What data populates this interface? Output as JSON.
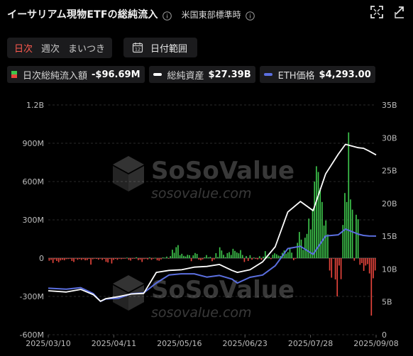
{
  "header": {
    "title": "イーサリアム現物ETFの総純流入",
    "timezone": "米国東部標準時"
  },
  "controls": {
    "periods": [
      "日次",
      "週次",
      "まいつき"
    ],
    "active_period": "日次",
    "date_range_label": "日付範囲",
    "calendar_day": "12"
  },
  "legend": [
    {
      "name": "日次総純流入額",
      "value": "-$96.69M",
      "color": "#3ec64c"
    },
    {
      "name": "総純資産",
      "value": "$27.39B",
      "color": "#ffffff"
    },
    {
      "name": "ETH価格",
      "value": "$4,293.00",
      "color": "#5b6fe0"
    }
  ],
  "watermark": {
    "brand": "SoSoValue",
    "site": "sosovalue.com"
  },
  "colors": {
    "positive": "#3ec64c",
    "negative": "#e8453c",
    "assets_line": "#ffffff",
    "price_line": "#5b6fe0",
    "background": "#000000"
  },
  "chart_data": {
    "type": "bar",
    "x_ticks": [
      "2025/03/10",
      "2025/04/11",
      "2025/05/16",
      "2025/06/23",
      "2025/07/28",
      "2025/09/08"
    ],
    "x_range": [
      "2025/03/10",
      "2025/09/08"
    ],
    "left_axis": {
      "ticks": [
        "1.2B",
        "900M",
        "600M",
        "300M",
        "0",
        "-300M",
        "-600M"
      ],
      "range": [
        -600,
        1200
      ],
      "unit": "M USD"
    },
    "right_axis": {
      "ticks": [
        "35B",
        "30B",
        "25B",
        "20B",
        "15B",
        "10B",
        "5B",
        "0"
      ],
      "range": [
        0,
        35
      ],
      "unit": "B USD"
    },
    "grid": true,
    "series": [
      {
        "name": "日次総純流入額",
        "kind": "bar",
        "unit": "M USD",
        "values": [
          -20,
          -14,
          -38,
          -10,
          -22,
          -32,
          -18,
          -13,
          -17,
          -8,
          -7,
          -5,
          -22,
          -30,
          -3,
          -13,
          -7,
          -14,
          -8,
          -17,
          -16,
          -6,
          -51,
          -9,
          -4,
          -6,
          -12,
          -3,
          -14,
          -6,
          -29,
          -34,
          -7,
          -42,
          -14,
          -6,
          -13,
          -3,
          -8,
          -5,
          -2,
          4,
          -14,
          -19,
          -5,
          -3,
          7,
          -16,
          -12,
          -30,
          -8,
          -5,
          -11,
          6,
          -13,
          -1,
          2,
          -17,
          -20,
          -10,
          6,
          3,
          12,
          -4,
          16,
          66,
          42,
          86,
          102,
          23,
          34,
          18,
          13,
          26,
          23,
          -24,
          22,
          40,
          33,
          -12,
          -17,
          -10,
          7,
          24,
          6,
          10,
          -24,
          -11,
          39,
          9,
          85,
          60,
          26,
          8,
          39,
          47,
          25,
          73,
          57,
          45,
          38,
          63,
          25,
          -30,
          16,
          -22,
          23,
          -12,
          5,
          -6,
          -10,
          15,
          -14,
          12,
          55,
          21,
          12,
          -8,
          26,
          38,
          30,
          20,
          17,
          42,
          60,
          36,
          47,
          73,
          43,
          -16,
          -4,
          120,
          205,
          145,
          65,
          160,
          190,
          310,
          225,
          385,
          600,
          720,
          675,
          548,
          440,
          255,
          295,
          186,
          -97,
          -153,
          -2,
          -167,
          -300,
          -58,
          -165,
          260,
          510,
          440,
          985,
          460,
          380,
          -20,
          340,
          305,
          -52,
          -39,
          -100,
          -58,
          -47,
          -120,
          -450,
          -158,
          -96.69
        ]
      },
      {
        "name": "総純資産",
        "kind": "line",
        "unit": "B USD",
        "points": [
          [
            "2025/03/10",
            6.7
          ],
          [
            "2025/03/20",
            6.5
          ],
          [
            "2025/03/28",
            6.9
          ],
          [
            "2025/04/04",
            6.1
          ],
          [
            "2025/04/08",
            5.1
          ],
          [
            "2025/04/11",
            5.5
          ],
          [
            "2025/04/18",
            5.8
          ],
          [
            "2025/04/25",
            6.2
          ],
          [
            "2025/05/02",
            6.3
          ],
          [
            "2025/05/09",
            9.5
          ],
          [
            "2025/05/16",
            9.8
          ],
          [
            "2025/05/23",
            9.9
          ],
          [
            "2025/05/30",
            10.3
          ],
          [
            "2025/06/06",
            10.4
          ],
          [
            "2025/06/13",
            10.7
          ],
          [
            "2025/06/20",
            9.8
          ],
          [
            "2025/06/23",
            9.5
          ],
          [
            "2025/06/30",
            9.9
          ],
          [
            "2025/07/07",
            11.1
          ],
          [
            "2025/07/14",
            13.4
          ],
          [
            "2025/07/21",
            18.7
          ],
          [
            "2025/07/28",
            20.3
          ],
          [
            "2025/08/04",
            18.9
          ],
          [
            "2025/08/11",
            24.5
          ],
          [
            "2025/08/18",
            27.5
          ],
          [
            "2025/08/22",
            29.0
          ],
          [
            "2025/08/29",
            28.5
          ],
          [
            "2025/09/01",
            28.4
          ],
          [
            "2025/09/04",
            28.0
          ],
          [
            "2025/09/08",
            27.39
          ]
        ]
      },
      {
        "name": "ETH価格",
        "kind": "line",
        "unit": "USD",
        "points": [
          [
            "2025/03/10",
            2025
          ],
          [
            "2025/03/20",
            1980
          ],
          [
            "2025/03/28",
            2050
          ],
          [
            "2025/04/04",
            1790
          ],
          [
            "2025/04/08",
            1450
          ],
          [
            "2025/04/11",
            1560
          ],
          [
            "2025/04/18",
            1590
          ],
          [
            "2025/04/25",
            1780
          ],
          [
            "2025/05/02",
            1820
          ],
          [
            "2025/05/09",
            2250
          ],
          [
            "2025/05/16",
            2600
          ],
          [
            "2025/05/23",
            2650
          ],
          [
            "2025/05/30",
            2650
          ],
          [
            "2025/06/06",
            2510
          ],
          [
            "2025/06/13",
            2580
          ],
          [
            "2025/06/20",
            2420
          ],
          [
            "2025/06/23",
            2250
          ],
          [
            "2025/06/30",
            2500
          ],
          [
            "2025/07/07",
            2600
          ],
          [
            "2025/07/14",
            3000
          ],
          [
            "2025/07/21",
            3750
          ],
          [
            "2025/07/28",
            3850
          ],
          [
            "2025/08/04",
            3500
          ],
          [
            "2025/08/11",
            4300
          ],
          [
            "2025/08/18",
            4350
          ],
          [
            "2025/08/22",
            4600
          ],
          [
            "2025/08/29",
            4380
          ],
          [
            "2025/09/01",
            4320
          ],
          [
            "2025/09/04",
            4300
          ],
          [
            "2025/09/08",
            4293
          ]
        ]
      }
    ]
  }
}
